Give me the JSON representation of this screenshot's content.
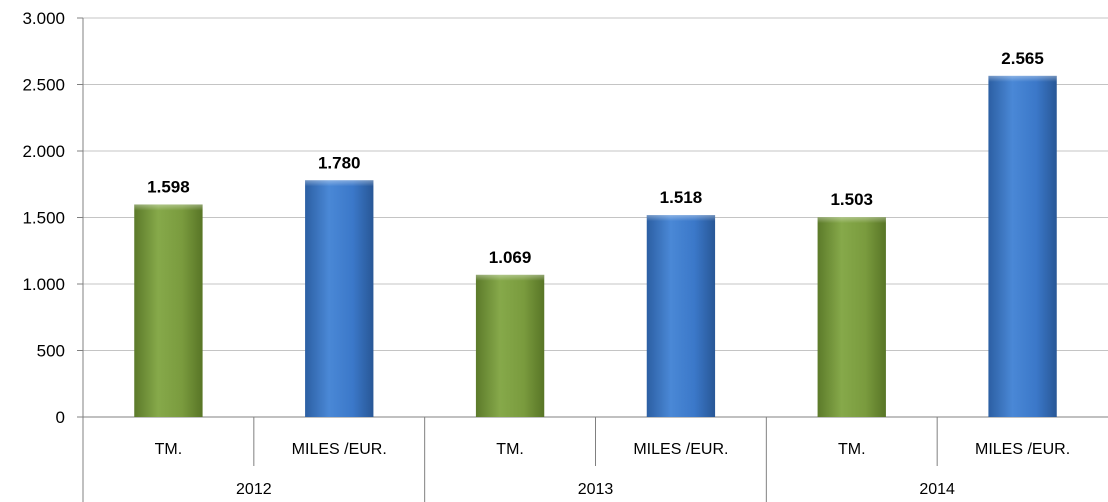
{
  "chart_data": {
    "type": "bar",
    "groups": [
      {
        "label": "2012",
        "categories": [
          "TM.",
          "MILES /EUR."
        ],
        "values": [
          1598,
          1780
        ],
        "value_labels": [
          "1.598",
          "1.780"
        ]
      },
      {
        "label": "2013",
        "categories": [
          "TM.",
          "MILES /EUR."
        ],
        "values": [
          1069,
          1518
        ],
        "value_labels": [
          "1.069",
          "1.518"
        ]
      },
      {
        "label": "2014",
        "categories": [
          "TM.",
          "MILES /EUR."
        ],
        "values": [
          1503,
          2565
        ],
        "value_labels": [
          "1.503",
          "2.565"
        ]
      }
    ],
    "yticks": [
      0,
      500,
      1000,
      1500,
      2000,
      2500,
      3000
    ],
    "ytick_labels": [
      "0",
      "500",
      "1.000",
      "1.500",
      "2.000",
      "2.500",
      "3.000"
    ],
    "ylim": [
      0,
      3000
    ],
    "grid": true,
    "legend": "none",
    "colors": {
      "TM.": "#7a9b3e",
      "MILES /EUR.": "#3b78c9"
    }
  }
}
